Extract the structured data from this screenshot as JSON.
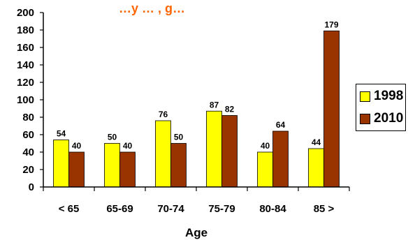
{
  "chart_data": {
    "type": "bar",
    "title": "…y … , g…",
    "xlabel": "Age",
    "ylabel": "",
    "categories": [
      "< 65",
      "65-69",
      "70-74",
      "75-79",
      "80-84",
      "85 >"
    ],
    "series": [
      {
        "name": "1998",
        "values": [
          54,
          50,
          76,
          87,
          40,
          44
        ],
        "color": "#FFFF00"
      },
      {
        "name": "2010",
        "values": [
          40,
          40,
          50,
          82,
          64,
          179
        ],
        "color": "#993300"
      }
    ],
    "ylim": [
      0,
      200
    ],
    "yticks": [
      0,
      20,
      40,
      60,
      80,
      100,
      120,
      140,
      160,
      180,
      200
    ],
    "grid": false,
    "legend_position": "right"
  }
}
